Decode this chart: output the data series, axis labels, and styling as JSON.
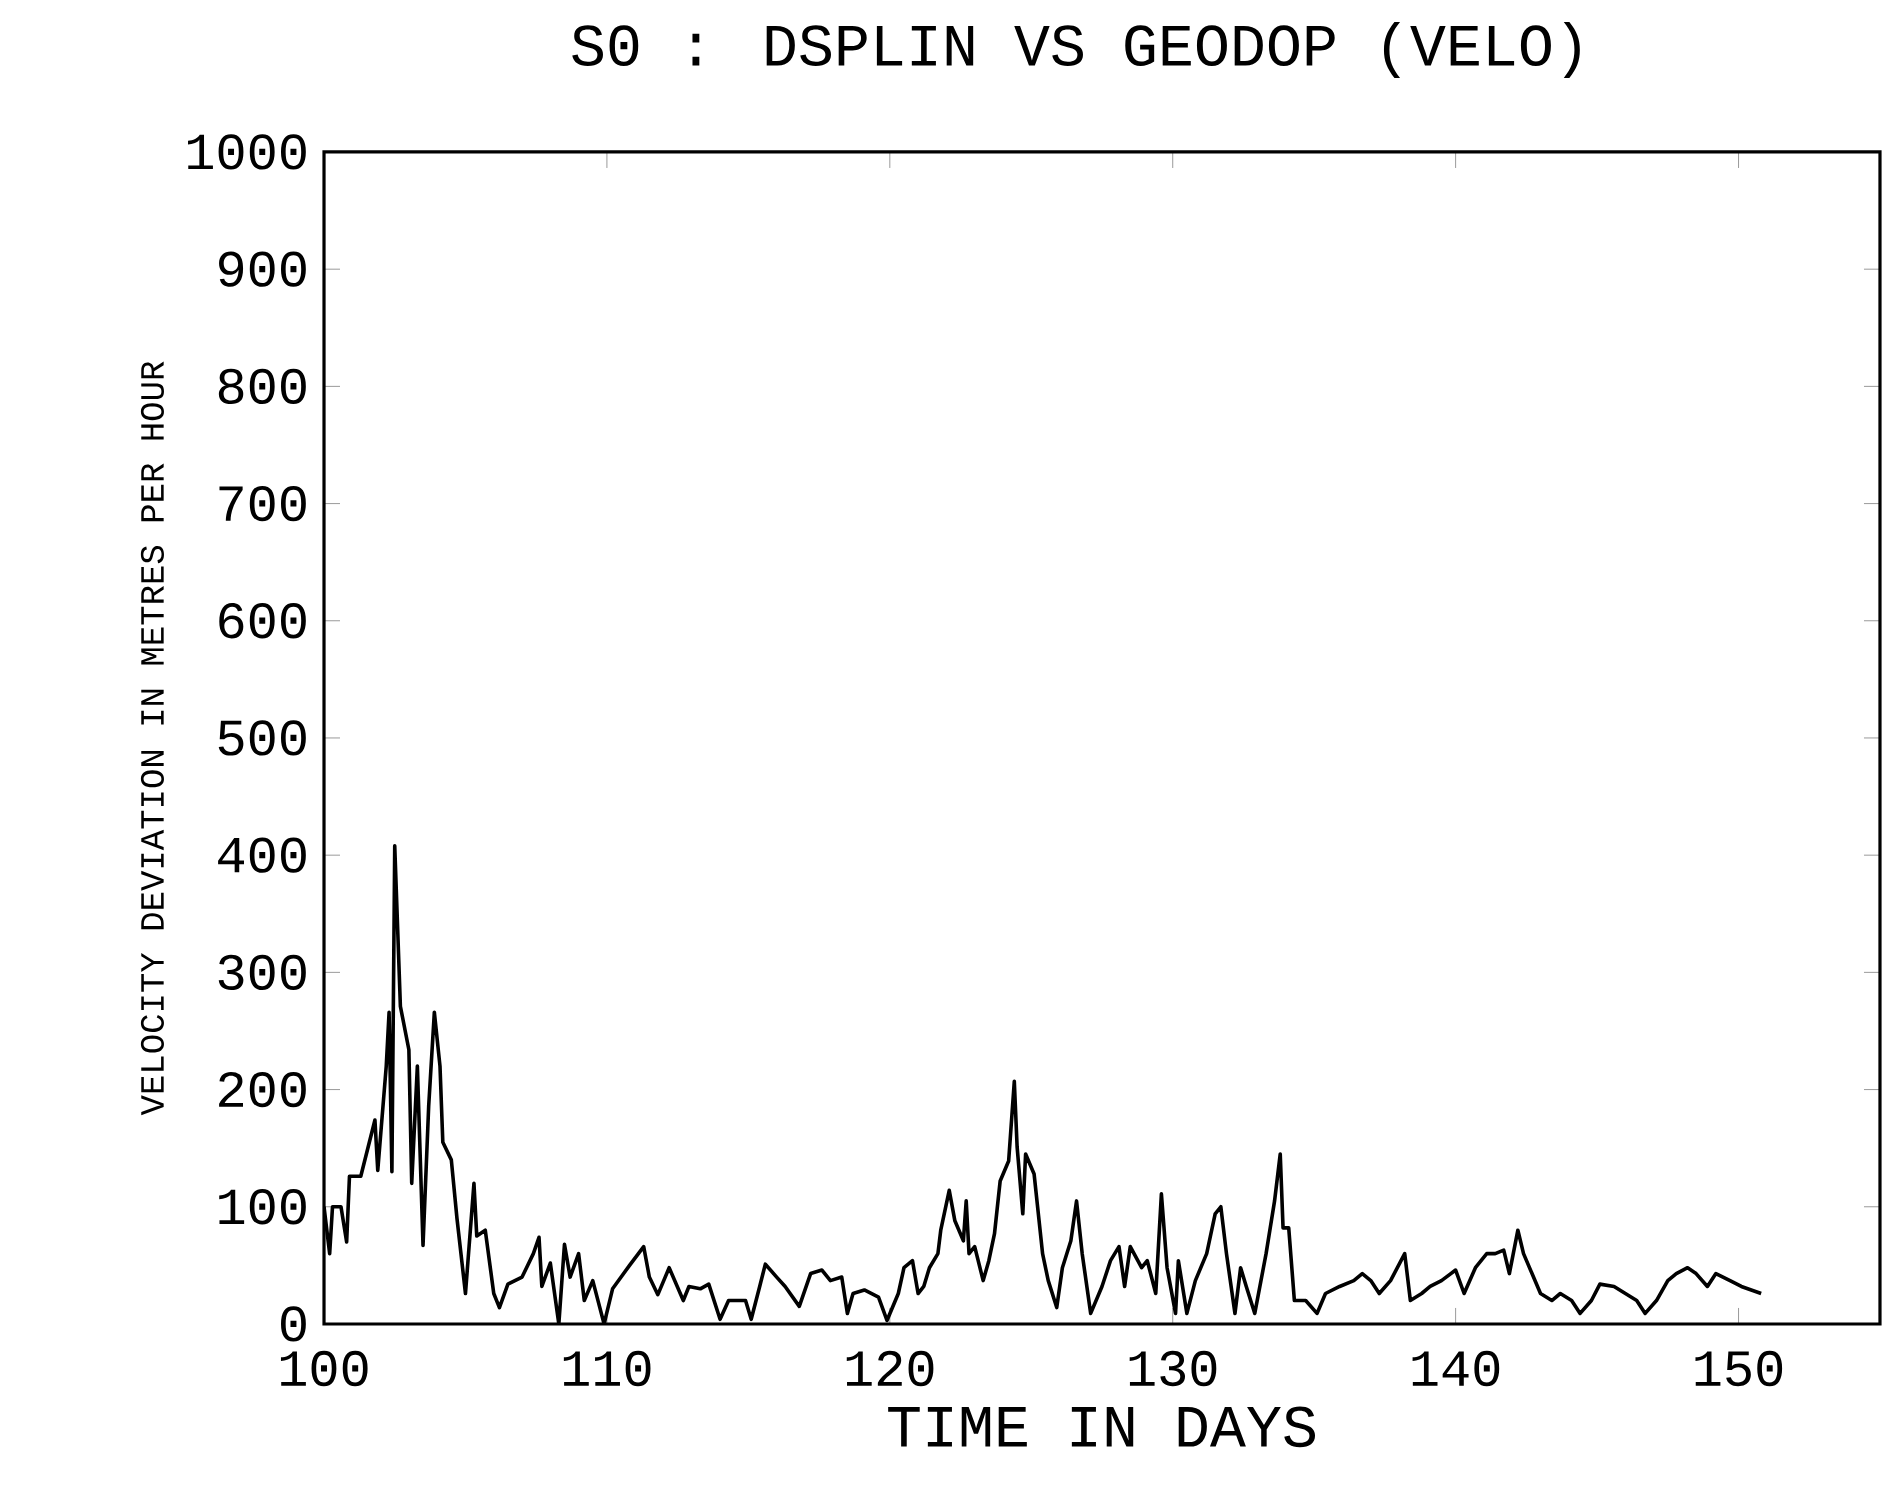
{
  "chart_data": {
    "type": "line",
    "title": "S0 : DSPLIN VS GEODOP (VELO)",
    "xlabel": "TIME IN DAYS",
    "ylabel": "VELOCITY DEVIATION IN METRES PER HOUR",
    "xlim": [
      100,
      155
    ],
    "ylim": [
      0,
      1000
    ],
    "xticks": [
      100,
      110,
      120,
      130,
      140,
      150
    ],
    "yticks": [
      0,
      100,
      200,
      300,
      400,
      500,
      600,
      700,
      800,
      900,
      1000
    ],
    "grid": false,
    "marker": "none",
    "line_style": "solid",
    "series": [
      {
        "color": "#000000",
        "x": [
          100.0,
          100.2,
          100.3,
          100.6,
          100.8,
          100.9,
          101.3,
          101.8,
          101.9,
          102.2,
          102.3,
          102.4,
          102.5,
          102.7,
          103.0,
          103.1,
          103.3,
          103.5,
          103.7,
          103.9,
          104.1,
          104.2,
          104.5,
          104.7,
          105.0,
          105.3,
          105.4,
          105.7,
          106.0,
          106.2,
          106.5,
          107.0,
          107.4,
          107.6,
          107.7,
          108.0,
          108.3,
          108.5,
          108.7,
          109.0,
          109.2,
          109.5,
          109.9,
          110.2,
          110.8,
          111.3,
          111.5,
          111.8,
          112.2,
          112.7,
          112.9,
          113.3,
          113.6,
          114.0,
          114.3,
          114.9,
          115.1,
          115.4,
          115.6,
          116.0,
          116.3,
          116.8,
          117.2,
          117.6,
          117.9,
          118.3,
          118.5,
          118.7,
          119.1,
          119.6,
          119.9,
          120.3,
          120.5,
          120.8,
          121.0,
          121.2,
          121.4,
          121.7,
          121.8,
          122.1,
          122.3,
          122.6,
          122.7,
          122.8,
          123.0,
          123.3,
          123.5,
          123.7,
          123.9,
          124.2,
          124.4,
          124.5,
          124.7,
          124.8,
          125.1,
          125.4,
          125.6,
          125.9,
          126.1,
          126.4,
          126.6,
          126.8,
          127.1,
          127.5,
          127.8,
          128.1,
          128.3,
          128.5,
          128.9,
          129.1,
          129.4,
          129.6,
          129.8,
          130.1,
          130.2,
          130.5,
          130.8,
          131.2,
          131.5,
          131.7,
          131.9,
          132.2,
          132.4,
          132.6,
          132.9,
          133.3,
          133.6,
          133.8,
          133.9,
          134.1,
          134.3,
          134.7,
          135.1,
          135.4,
          135.9,
          136.4,
          136.7,
          137.0,
          137.3,
          137.7,
          138.2,
          138.4,
          138.8,
          139.1,
          139.5,
          140.0,
          140.3,
          140.7,
          141.1,
          141.4,
          141.7,
          141.9,
          142.2,
          142.4,
          142.7,
          143.0,
          143.4,
          143.7,
          144.1,
          144.4,
          144.8,
          145.1,
          145.6,
          146.0,
          146.4,
          146.7,
          147.1,
          147.5,
          147.8,
          148.2,
          148.5,
          148.9,
          149.2,
          149.7,
          150.1,
          150.8
        ],
        "values": [
          100,
          60,
          100,
          100,
          70,
          126,
          126,
          174,
          131,
          220,
          266,
          130,
          408,
          271,
          234,
          120,
          220,
          67,
          186,
          266,
          220,
          155,
          140,
          90,
          26,
          120,
          75,
          80,
          26,
          14,
          34,
          40,
          60,
          74,
          32,
          52,
          0,
          68,
          40,
          60,
          20,
          37,
          0,
          30,
          50,
          66,
          40,
          25,
          48,
          20,
          32,
          30,
          34,
          4,
          20,
          20,
          4,
          32,
          51,
          40,
          32,
          15,
          43,
          46,
          37,
          40,
          9,
          26,
          29,
          23,
          3,
          26,
          48,
          54,
          26,
          32,
          48,
          60,
          80,
          114,
          88,
          71,
          105,
          60,
          66,
          37,
          54,
          77,
          122,
          139,
          207,
          151,
          94,
          145,
          128,
          60,
          37,
          14,
          48,
          71,
          105,
          60,
          9,
          32,
          54,
          66,
          32,
          66,
          48,
          54,
          26,
          111,
          48,
          9,
          54,
          9,
          37,
          60,
          94,
          100,
          60,
          9,
          48,
          32,
          9,
          60,
          105,
          145,
          82,
          82,
          20,
          20,
          9,
          26,
          32,
          37,
          43,
          37,
          26,
          37,
          60,
          20,
          26,
          32,
          37,
          46,
          26,
          48,
          60,
          60,
          63,
          43,
          80,
          60,
          43,
          26,
          20,
          26,
          20,
          9,
          20,
          34,
          32,
          26,
          20,
          9,
          20,
          37,
          43,
          48,
          43,
          32,
          43,
          37,
          32,
          26
        ]
      }
    ]
  }
}
